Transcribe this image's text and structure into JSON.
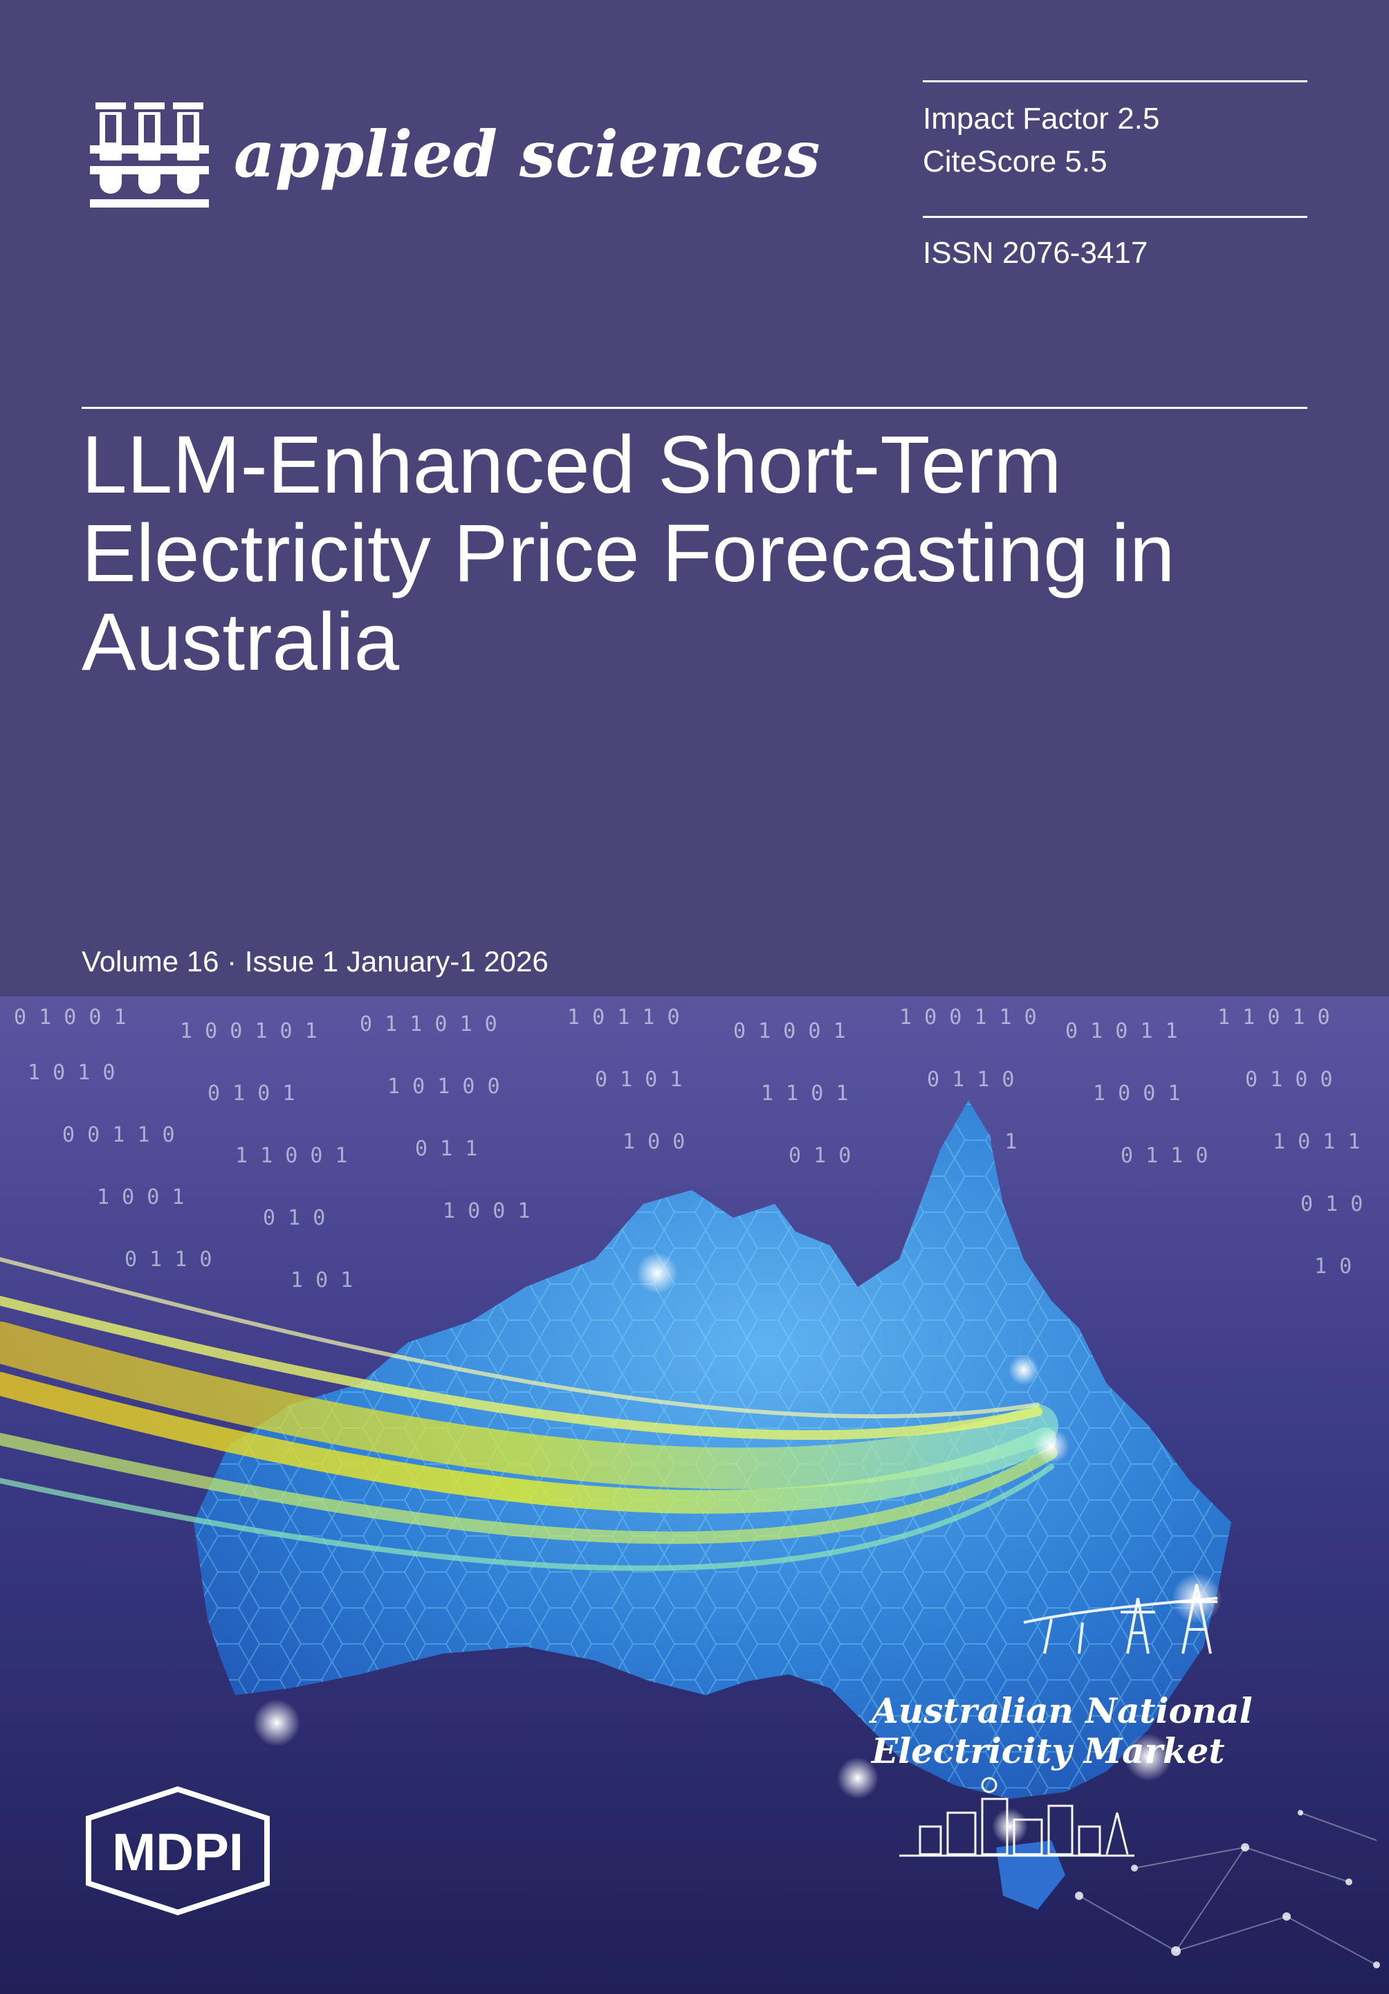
{
  "journal": {
    "name": "applied sciences",
    "impact_factor": "Impact Factor 2.5",
    "citescore": "CiteScore 5.5",
    "issn": "ISSN 2076-3417"
  },
  "article": {
    "title_lines": [
      "LLM-Enhanced Short-Term",
      "Electricity Price Forecasting in",
      "Australia"
    ]
  },
  "issue": {
    "line": "Volume 16 · Issue 1 January-1 2026"
  },
  "illustration": {
    "caption_line1": "Australian National",
    "caption_line2": "Electricity Market"
  },
  "publisher": {
    "name": "MDPI"
  },
  "colors": {
    "top_background": "#4b4478",
    "art_top": "#5b55a0",
    "art_bottom": "#1f2058",
    "map_blue": "#3a8ee0",
    "light_stream": "#e6f02a"
  },
  "icons": [
    "test-tubes-logo-icon",
    "hexagon-logo-icon"
  ]
}
